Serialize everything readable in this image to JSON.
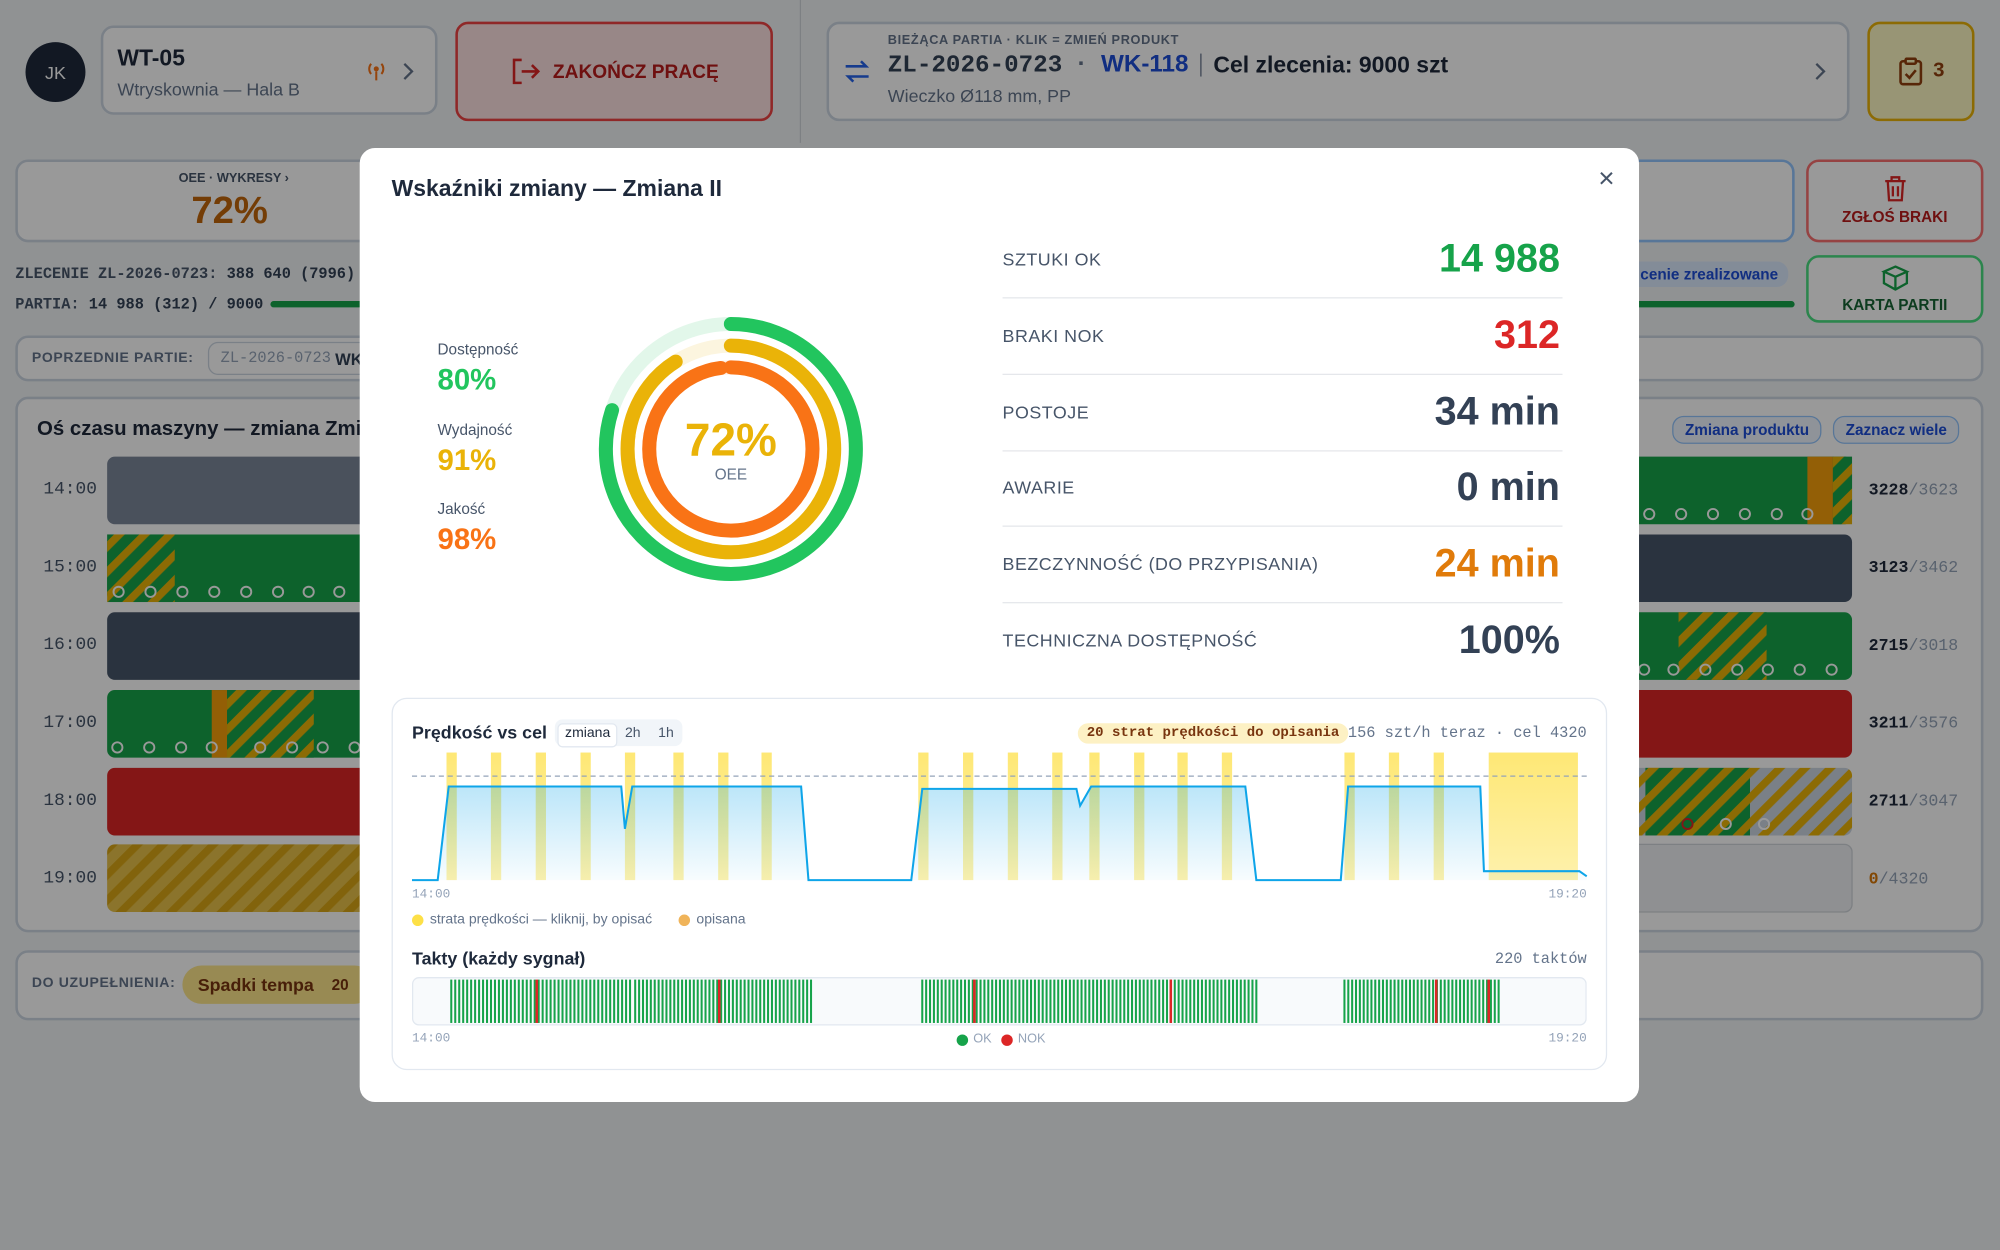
{
  "header": {
    "avatar": "JK",
    "machine": "WT-05",
    "location": "Wtryskownia — Hala B",
    "end_work": "ZAKOŃCZ PRACĘ",
    "batch_caption": "BIEŻĄCA PARTIA · KLIK = ZMIEŃ PRODUKT",
    "batch_id": "ZL-2026-0723",
    "batch_sep": "·",
    "product": "WK-118",
    "order_target": "Cel zlecenia: 9000 szt",
    "product_desc": "Wieczko Ø118 mm, PP",
    "tasks": "3"
  },
  "summary": {
    "oee_caption": "OEE · WYKRESY ›",
    "oee_value": "72%",
    "order_label": "ZLECENIE ZL-2026-0723:",
    "order_value": "388 640 (7996)",
    "batch_label": "PARTIA:",
    "batch_value": "14 988 (312) / 9000",
    "order_status": "cenie zrealizowane",
    "report_scrap": "ZGŁOŚ BRAKI",
    "batch_card": "KARTA PARTII"
  },
  "previous": {
    "label": "POPRZEDNIE PARTIE:",
    "chip_id": "ZL-2026-0723",
    "chip_product": "WK"
  },
  "timeline": {
    "title": "Oś czasu maszyny — zmiana Zmia",
    "actions": [
      "Zmiana produktu",
      "Zaznacz wiele"
    ],
    "rows": [
      {
        "hour": "14:00",
        "ok": "3228",
        "target": "/3623"
      },
      {
        "hour": "15:00",
        "ok": "3123",
        "target": "/3462"
      },
      {
        "hour": "16:00",
        "ok": "2715",
        "target": "/3018"
      },
      {
        "hour": "17:00",
        "ok": "3211",
        "target": "/3576"
      },
      {
        "hour": "18:00",
        "ok": "2711",
        "target": "/3047"
      },
      {
        "hour": "19:00",
        "ok": "0",
        "target": "/4320"
      }
    ]
  },
  "todo": {
    "label": "DO UZUPEŁNIENIA:",
    "item": "Spadki tempa",
    "count": "20"
  },
  "modal": {
    "title": "Wskaźniki zmiany — Zmiana II",
    "close": "×",
    "metrics": [
      {
        "label": "SZTUKI OK",
        "value": "14 988",
        "color": "#16a34a"
      },
      {
        "label": "BRAKI NOK",
        "value": "312",
        "color": "#dc2626"
      },
      {
        "label": "POSTOJE",
        "value": "34 min",
        "color": "#334155"
      },
      {
        "label": "AWARIE",
        "value": "0 min",
        "color": "#334155"
      },
      {
        "label": "BEZCZYNNOŚĆ (DO PRZYPISANIA)",
        "value": "24 min",
        "color": "#e07b0a"
      },
      {
        "label": "TECHNICZNA DOSTĘPNOŚĆ",
        "value": "100%",
        "color": "#334155"
      }
    ]
  },
  "chart_data": [
    {
      "type": "line",
      "title": "Prędkość vs cel",
      "tabs": [
        "zmiana",
        "2h",
        "1h"
      ],
      "active_tab": 0,
      "badge": "20 strat prędkości do opisania",
      "info": "156 szt/h teraz · cel 4320",
      "x": [
        0,
        7,
        10,
        57,
        58,
        60,
        106,
        108,
        136,
        139,
        181,
        182,
        185,
        227,
        230,
        253,
        255,
        291,
        292,
        318,
        320
      ],
      "values": [
        0,
        0,
        3890,
        3890,
        2130,
        3890,
        3890,
        0,
        0,
        3790,
        3790,
        3090,
        3890,
        3890,
        0,
        0,
        3890,
        3890,
        370,
        370,
        156
      ],
      "color": "#0ea5e9",
      "target": 4320,
      "xlim": [
        0,
        320
      ],
      "ylim": [
        0,
        5300
      ],
      "xticks": [
        {
          "value": 0,
          "label": "14:00"
        },
        {
          "value": 320,
          "label": "19:20"
        }
      ],
      "losses": [
        [
          9.4,
          12.2
        ],
        [
          21.5,
          24.3
        ],
        [
          33.7,
          36.5
        ],
        [
          45.9,
          48.7
        ],
        [
          58,
          60.8
        ],
        [
          71.2,
          74
        ],
        [
          83.4,
          86.2
        ],
        [
          95.2,
          98
        ],
        [
          137.9,
          140.7
        ],
        [
          150.1,
          152.9
        ],
        [
          162.3,
          165.1
        ],
        [
          174.4,
          177.2
        ],
        [
          184.5,
          187.3
        ],
        [
          196.7,
          199.5
        ],
        [
          208.5,
          211.3
        ],
        [
          220.6,
          223.4
        ],
        [
          254,
          256.8
        ],
        [
          266.1,
          268.9
        ],
        [
          278.3,
          281.1
        ],
        [
          293.3,
          317.6
        ]
      ],
      "legend": [
        {
          "name": "strata prędkości — kliknij, by opisać",
          "color": "#fde047"
        },
        {
          "name": "opisana",
          "color": "#f0b45a"
        }
      ]
    },
    {
      "type": "strip",
      "title": "Takty (każdy sygnał)",
      "total_label": "220 taktów",
      "xlim": [
        0,
        320
      ],
      "xticks": [
        {
          "value": 0,
          "label": "14:00"
        },
        {
          "value": 320,
          "label": "19:20"
        }
      ],
      "runs": [
        {
          "start": 10.7,
          "end": 59.4,
          "count": 46
        },
        {
          "start": 60.8,
          "end": 108.7,
          "count": 46
        },
        {
          "start": 139,
          "end": 230,
          "count": 87
        },
        {
          "start": 254,
          "end": 296,
          "count": 41
        }
      ],
      "nok": [
        34,
        83.7,
        153.2,
        206.7,
        279,
        293.3
      ],
      "legend": [
        {
          "name": "OK",
          "color": "#16a34a"
        },
        {
          "name": "NOK",
          "color": "#dc2626"
        }
      ]
    },
    {
      "type": "radial",
      "center_value": 72,
      "center_label": "72%",
      "center_name": "OEE",
      "ylim": [
        0,
        100
      ],
      "center_color": "#eab308",
      "series": [
        {
          "name": "Dostępność",
          "value": 80,
          "value_label": "80%",
          "color": "#22c55e"
        },
        {
          "name": "Wydajność",
          "value": 91,
          "value_label": "91%",
          "color": "#eab308"
        },
        {
          "name": "Jakość",
          "value": 98,
          "value_label": "98%",
          "color": "#f97316"
        }
      ]
    }
  ]
}
